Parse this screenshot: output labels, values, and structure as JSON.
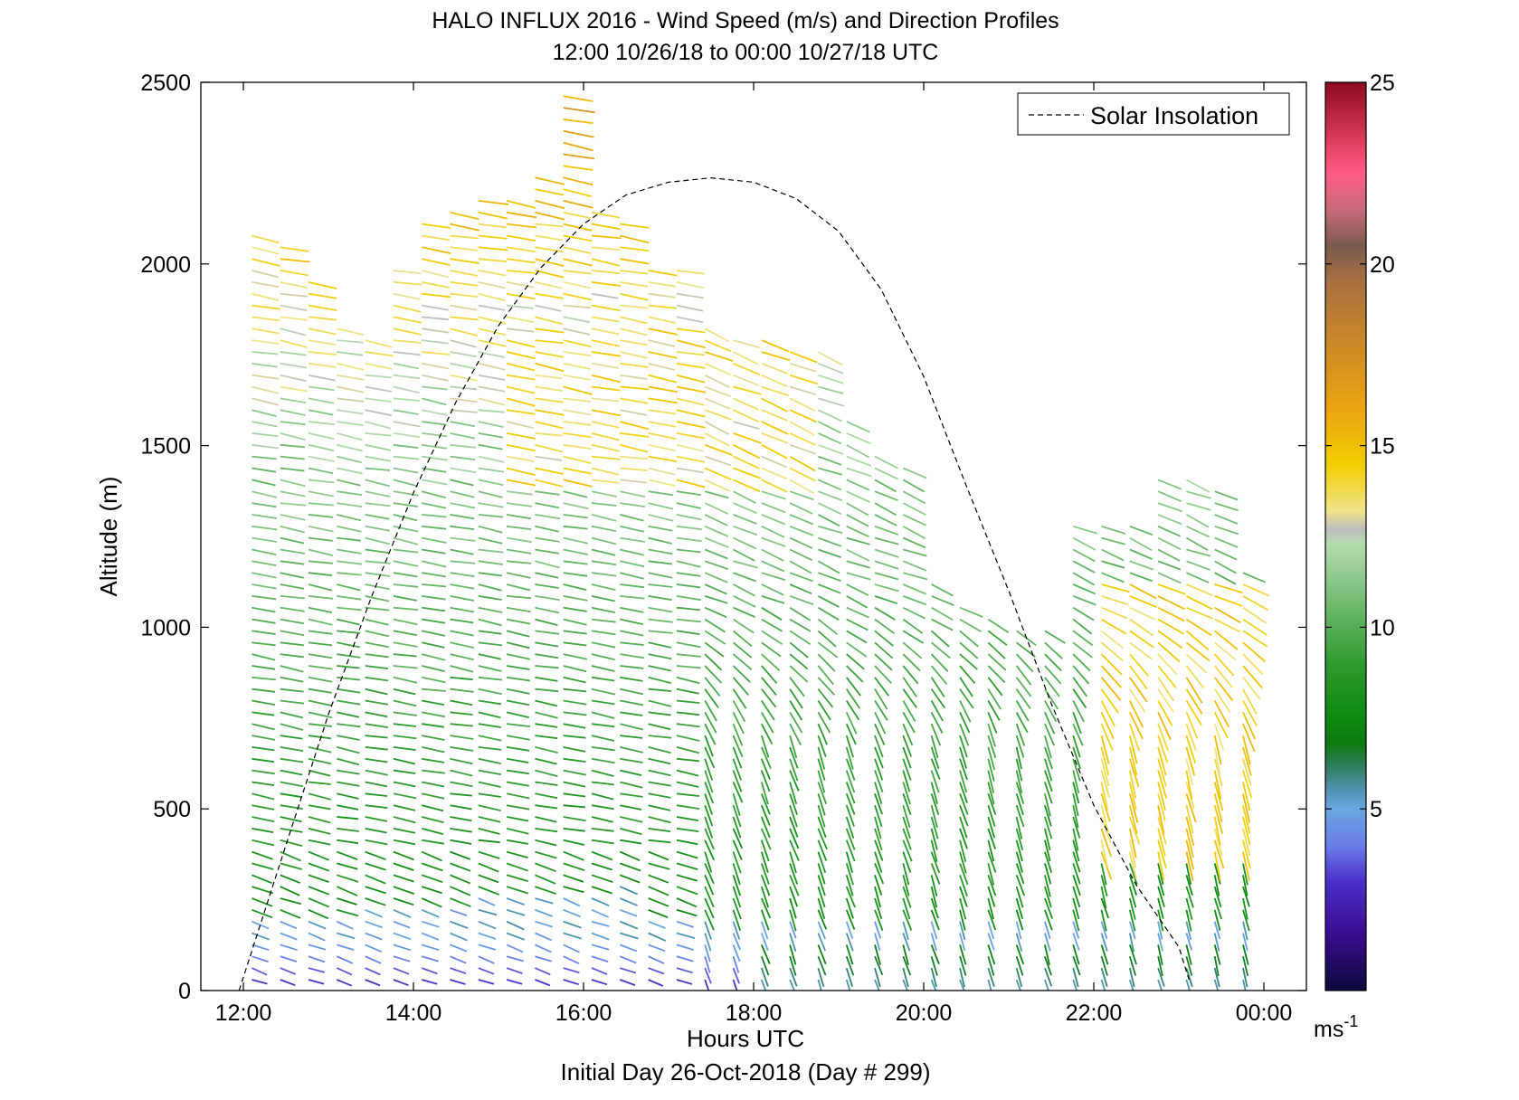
{
  "chart_data": {
    "type": "quiver",
    "title": "HALO INFLUX 2016 - Wind Speed (m/s) and Direction Profiles",
    "subtitle": "12:00 10/26/18 to 00:00 10/27/18  UTC",
    "xlabel": "Hours UTC",
    "xlabel2": "Initial Day 26-Oct-2018 (Day # 299)",
    "ylabel": "Altitude (m)",
    "xlim": [
      11.5,
      24.5
    ],
    "ylim": [
      0,
      2500
    ],
    "xticks": [
      12,
      14,
      16,
      18,
      20,
      22,
      24
    ],
    "xtick_labels": [
      "12:00",
      "14:00",
      "16:00",
      "18:00",
      "20:00",
      "22:00",
      "00:00"
    ],
    "yticks": [
      0,
      500,
      1000,
      1500,
      2000,
      2500
    ],
    "ytick_labels": [
      "0",
      "500",
      "1000",
      "1500",
      "2000",
      "2500"
    ],
    "grid": false,
    "legend": {
      "entries": [
        "Solar Insolation"
      ],
      "placement": "top-right"
    },
    "colorbar": {
      "min": 0,
      "max": 25,
      "ticks": [
        5,
        10,
        15,
        20,
        25
      ],
      "tick_labels": [
        "5",
        "10",
        "15",
        "20",
        "25"
      ],
      "unit": "ms",
      "unit_exp": "-1",
      "stops": [
        [
          0,
          "#0b0b3b"
        ],
        [
          1.5,
          "#3a0a8c"
        ],
        [
          3,
          "#4b30c8"
        ],
        [
          4,
          "#6a7ee8"
        ],
        [
          5,
          "#6aa7e0"
        ],
        [
          5.6,
          "#4b8faa"
        ],
        [
          6.2,
          "#2e7d5a"
        ],
        [
          6.8,
          "#0c7a10"
        ],
        [
          7.5,
          "#0d8a10"
        ],
        [
          9,
          "#2f9a2f"
        ],
        [
          10.5,
          "#6ab76a"
        ],
        [
          12.3,
          "#b6dcb0"
        ],
        [
          12.7,
          "#bdbdbd"
        ],
        [
          13.2,
          "#f0e48a"
        ],
        [
          14.5,
          "#f2cd00"
        ],
        [
          16,
          "#eba513"
        ],
        [
          18,
          "#c8862a"
        ],
        [
          19.5,
          "#a87040"
        ],
        [
          20.5,
          "#7a5a4e"
        ],
        [
          21.5,
          "#c86a7a"
        ],
        [
          22.5,
          "#ff5c86"
        ],
        [
          23.5,
          "#d83a56"
        ],
        [
          25,
          "#8a0b1d"
        ]
      ]
    },
    "solar_insolation": {
      "style": "dashed",
      "color": "#000000",
      "x": [
        11.95,
        12.5,
        13,
        13.5,
        14,
        14.5,
        15,
        15.5,
        16,
        16.5,
        17,
        17.5,
        18,
        18.5,
        19,
        19.5,
        20,
        20.5,
        21,
        21.5,
        22,
        22.5,
        23,
        23.12
      ],
      "y": [
        0,
        400,
        760,
        1080,
        1370,
        1620,
        1830,
        1990,
        2110,
        2190,
        2225,
        2237,
        2225,
        2180,
        2090,
        1930,
        1690,
        1390,
        1100,
        790,
        510,
        290,
        120,
        30
      ]
    },
    "wind_field": {
      "time_start_hours": 12.1,
      "time_step_hours": 0.333,
      "column_count": 36,
      "altitude_min_m": 30,
      "altitude_step_m": 32,
      "profile_top_m": [
        2085,
        2070,
        1950,
        1830,
        1800,
        2010,
        2130,
        2150,
        2200,
        2180,
        2260,
        2480,
        2170,
        2110,
        2000,
        2010,
        1840,
        1800,
        1820,
        1780,
        1760,
        1590,
        1500,
        1460,
        1120,
        1060,
        1050,
        1000,
        990,
        1300,
        1300,
        1300,
        1420,
        1420,
        1400,
        1180
      ],
      "notes": "speed in m/s; direction as meteorological degrees"
    }
  }
}
